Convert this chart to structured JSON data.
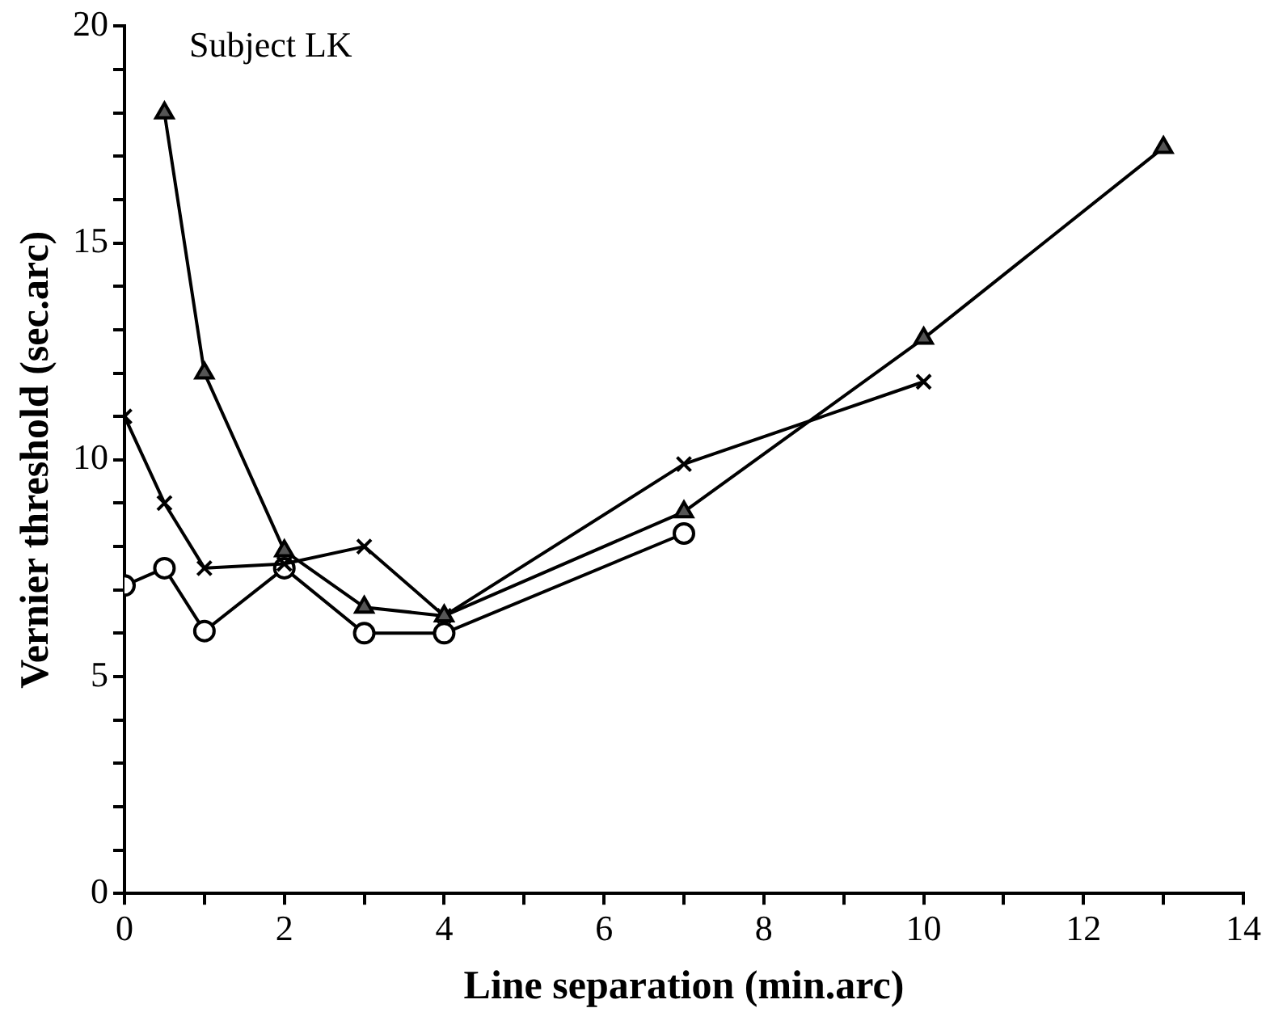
{
  "chart_data": {
    "type": "line",
    "xlabel": "Line separation (min.arc)",
    "ylabel": "Vernier threshold (sec.arc)",
    "annotations": [
      "Subject LK"
    ],
    "xlim": [
      0,
      14
    ],
    "xticks": [
      0,
      {
        "value": 1,
        "label": null
      },
      2,
      {
        "value": 3,
        "label": null
      },
      4,
      {
        "value": 5,
        "label": null
      },
      6,
      {
        "value": 7,
        "label": null
      },
      8,
      {
        "value": 9,
        "label": null
      },
      10,
      {
        "value": 11,
        "label": null
      },
      12,
      {
        "value": 13,
        "label": null
      },
      14
    ],
    "ylim": [
      0,
      20
    ],
    "yticks": [
      0,
      {
        "value": 1,
        "label": null
      },
      {
        "value": 2,
        "label": null
      },
      {
        "value": 3,
        "label": null
      },
      {
        "value": 4,
        "label": null
      },
      5,
      {
        "value": 6,
        "label": null
      },
      {
        "value": 7,
        "label": null
      },
      {
        "value": 8,
        "label": null
      },
      {
        "value": 9,
        "label": null
      },
      10,
      {
        "value": 11,
        "label": null
      },
      {
        "value": 12,
        "label": null
      },
      {
        "value": 13,
        "label": null
      },
      {
        "value": 14,
        "label": null
      },
      15,
      {
        "value": 16,
        "label": null
      },
      {
        "value": 17,
        "label": null
      },
      {
        "value": 18,
        "label": null
      },
      {
        "value": 19,
        "label": null
      },
      20
    ],
    "grid": false,
    "legend": false,
    "line_style": "solid",
    "series": [
      {
        "color": "#000000",
        "marker": "triangle",
        "x": [
          0.5,
          1,
          2,
          3,
          4,
          7,
          10,
          13
        ],
        "values": [
          18,
          12,
          7.9,
          6.6,
          6.4,
          8.8,
          12.8,
          17.2
        ]
      },
      {
        "color": "#000000",
        "marker": "cross",
        "x": [
          0,
          0.5,
          1,
          2,
          3,
          4,
          7,
          10
        ],
        "values": [
          11,
          9,
          7.5,
          7.6,
          8,
          6.4,
          9.9,
          11.8
        ]
      },
      {
        "color": "#000000",
        "marker": "circle",
        "x": [
          0,
          0.5,
          1,
          2,
          3,
          4,
          7
        ],
        "values": [
          7.1,
          7.5,
          6.05,
          7.5,
          6,
          6,
          8.3
        ]
      }
    ]
  }
}
